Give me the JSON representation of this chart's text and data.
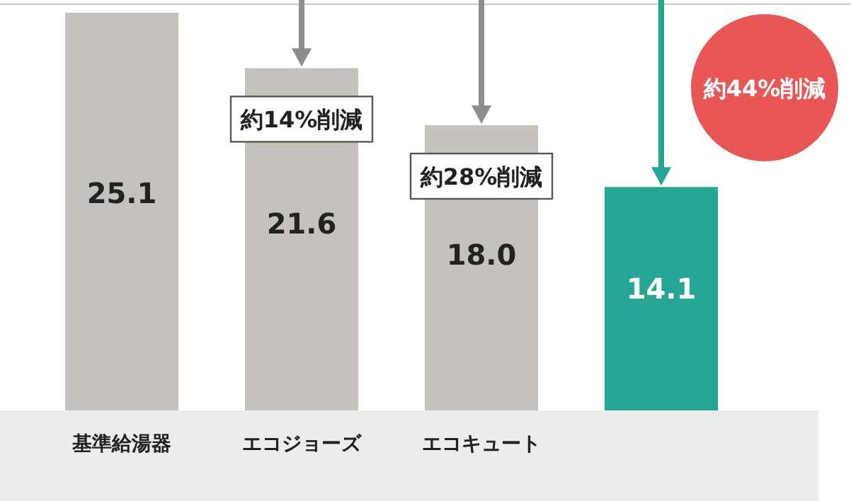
{
  "chart_data": {
    "type": "bar",
    "categories": [
      "基準給湯器",
      "エコジョーズ",
      "エコキュート",
      null
    ],
    "values": [
      25.1,
      21.6,
      18.0,
      14.1
    ],
    "value_labels": [
      "25.1",
      "21.6",
      "18.0",
      "14.1"
    ],
    "colors": [
      "#c5c1bd",
      "#c5c1bd",
      "#c5c1bd",
      "#27a594"
    ],
    "annotations": [
      "約14%削減",
      "約28%削減",
      "約44%削減"
    ]
  }
}
